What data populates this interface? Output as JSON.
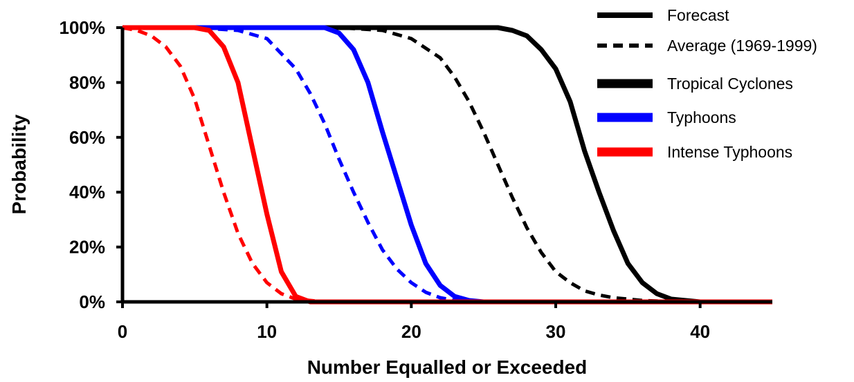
{
  "chart_data": {
    "type": "line",
    "title": "",
    "xlabel": "Number Equalled or Exceeded",
    "ylabel": "Probability",
    "xlim": [
      0,
      45
    ],
    "ylim": [
      0,
      100
    ],
    "x_ticks": [
      0,
      10,
      20,
      30,
      40
    ],
    "x_tick_labels": [
      "0",
      "10",
      "20",
      "30",
      "40"
    ],
    "y_ticks": [
      0,
      20,
      40,
      60,
      80,
      100
    ],
    "y_tick_labels": [
      "0%",
      "20%",
      "40%",
      "60%",
      "80%",
      "100%"
    ],
    "grid": false,
    "legend_position": "top-right",
    "legend": {
      "style_entries": [
        {
          "label": "Forecast",
          "dash": "solid"
        },
        {
          "label": "Average (1969-1999)",
          "dash": "dashed"
        }
      ],
      "color_entries": [
        {
          "label": "Tropical Cyclones",
          "color": "#000000"
        },
        {
          "label": "Typhoons",
          "color": "#0000ff"
        },
        {
          "label": "Intense Typhoons",
          "color": "#ff0000"
        }
      ]
    },
    "series": [
      {
        "group": "Tropical Cyclones",
        "style": "Forecast",
        "color": "#000000",
        "dash": "solid",
        "x": [
          0,
          24,
          26,
          27,
          28,
          29,
          30,
          31,
          32,
          33,
          34,
          35,
          36,
          37,
          38,
          39,
          40,
          45
        ],
        "y": [
          100,
          100,
          100,
          99,
          97,
          92,
          85,
          73,
          55,
          40,
          26,
          14,
          7,
          3,
          1,
          0.5,
          0,
          0
        ]
      },
      {
        "group": "Tropical Cyclones",
        "style": "Average (1969-1999)",
        "color": "#000000",
        "dash": "dashed",
        "x": [
          0,
          15,
          18,
          20,
          22,
          23,
          24,
          25,
          26,
          27,
          28,
          29,
          30,
          31,
          32,
          33,
          34,
          35,
          36,
          37,
          38,
          40,
          45
        ],
        "y": [
          100,
          100,
          99,
          96,
          89,
          82,
          73,
          62,
          50,
          38,
          27,
          18,
          11,
          7,
          4,
          2.5,
          1.5,
          1,
          0.5,
          0.3,
          0.2,
          0,
          0
        ]
      },
      {
        "group": "Typhoons",
        "style": "Forecast",
        "color": "#0000ff",
        "dash": "solid",
        "x": [
          0,
          14,
          15,
          16,
          17,
          18,
          19,
          20,
          21,
          22,
          23,
          24,
          25,
          27,
          45
        ],
        "y": [
          100,
          100,
          98,
          92,
          80,
          62,
          45,
          28,
          14,
          6,
          2,
          0.5,
          0,
          0,
          0
        ]
      },
      {
        "group": "Typhoons",
        "style": "Average (1969-1999)",
        "color": "#0000ff",
        "dash": "dashed",
        "x": [
          0,
          5,
          8,
          10,
          12,
          13,
          14,
          15,
          16,
          17,
          18,
          19,
          20,
          21,
          22,
          23,
          24,
          45
        ],
        "y": [
          100,
          100,
          99,
          96,
          85,
          76,
          65,
          52,
          40,
          29,
          19,
          12,
          7,
          3.5,
          1.5,
          0.5,
          0,
          0
        ]
      },
      {
        "group": "Intense Typhoons",
        "style": "Forecast",
        "color": "#ff0000",
        "dash": "solid",
        "x": [
          0,
          5,
          6,
          7,
          8,
          9,
          10,
          11,
          12,
          13,
          45
        ],
        "y": [
          100,
          100,
          99,
          93,
          80,
          56,
          32,
          11,
          2,
          0,
          0
        ]
      },
      {
        "group": "Intense Typhoons",
        "style": "Average (1969-1999)",
        "color": "#ff0000",
        "dash": "dashed",
        "x": [
          0,
          1,
          2,
          3,
          4,
          5,
          6,
          7,
          8,
          9,
          10,
          11,
          12,
          13,
          14,
          15,
          45
        ],
        "y": [
          100,
          99,
          97,
          93,
          86,
          74,
          57,
          40,
          25,
          14,
          7,
          3,
          1,
          0.5,
          0,
          0,
          0
        ]
      }
    ]
  }
}
